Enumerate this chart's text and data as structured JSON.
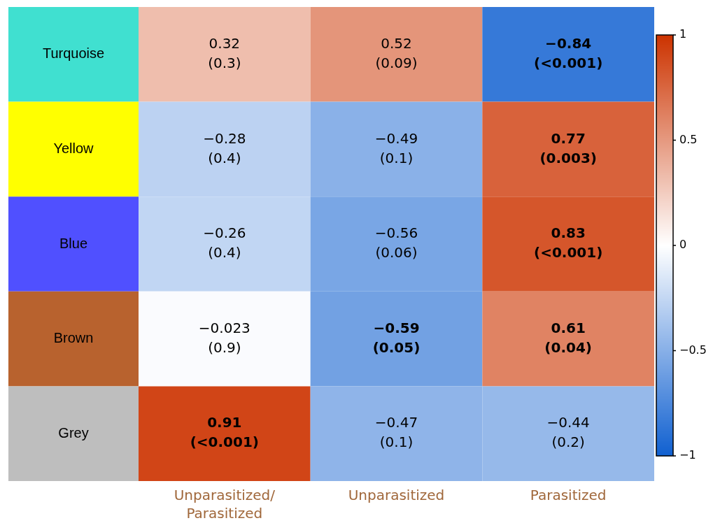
{
  "chart_data": {
    "type": "heatmap",
    "categories": [
      "Unparasitized/Parasitized",
      "Unparasitized",
      "Parasitized"
    ],
    "y_categories": [
      "Turquoise",
      "Yellow",
      "Blue",
      "Brown",
      "Grey"
    ],
    "colors": [
      "#40e0d0",
      "#ffff00",
      "#5050ff",
      "#b8622e",
      "#bebebe"
    ],
    "cells": [
      [
        0.32,
        0.52,
        -0.84
      ],
      [
        -0.28,
        -0.49,
        0.77
      ],
      [
        -0.26,
        -0.56,
        0.83
      ],
      [
        -0.023,
        -0.59,
        0.61
      ],
      [
        0.91,
        -0.47,
        -0.44
      ]
    ],
    "cell_labels": [
      [
        "0.32\n(0.3)",
        "0.52\n(0.09)",
        "−0.84\n(<0.001)"
      ],
      [
        "−0.28\n(0.4)",
        "−0.49\n(0.1)",
        "0.77\n(0.003)"
      ],
      [
        "−0.26\n(0.4)",
        "−0.56\n(0.06)",
        "0.83\n(<0.001)"
      ],
      [
        "−0.023\n(0.9)",
        "−0.59\n(0.05)",
        "0.61\n(0.04)"
      ],
      [
        "0.91\n(<0.001)",
        "−0.47\n(0.1)",
        "−0.44\n(0.2)"
      ]
    ],
    "clim": [
      -1,
      1
    ],
    "cticks": [
      {
        "value": -1,
        "label": "−1"
      },
      {
        "value": -0.5,
        "label": "−0.5"
      },
      0,
      0.5,
      1
    ]
  }
}
